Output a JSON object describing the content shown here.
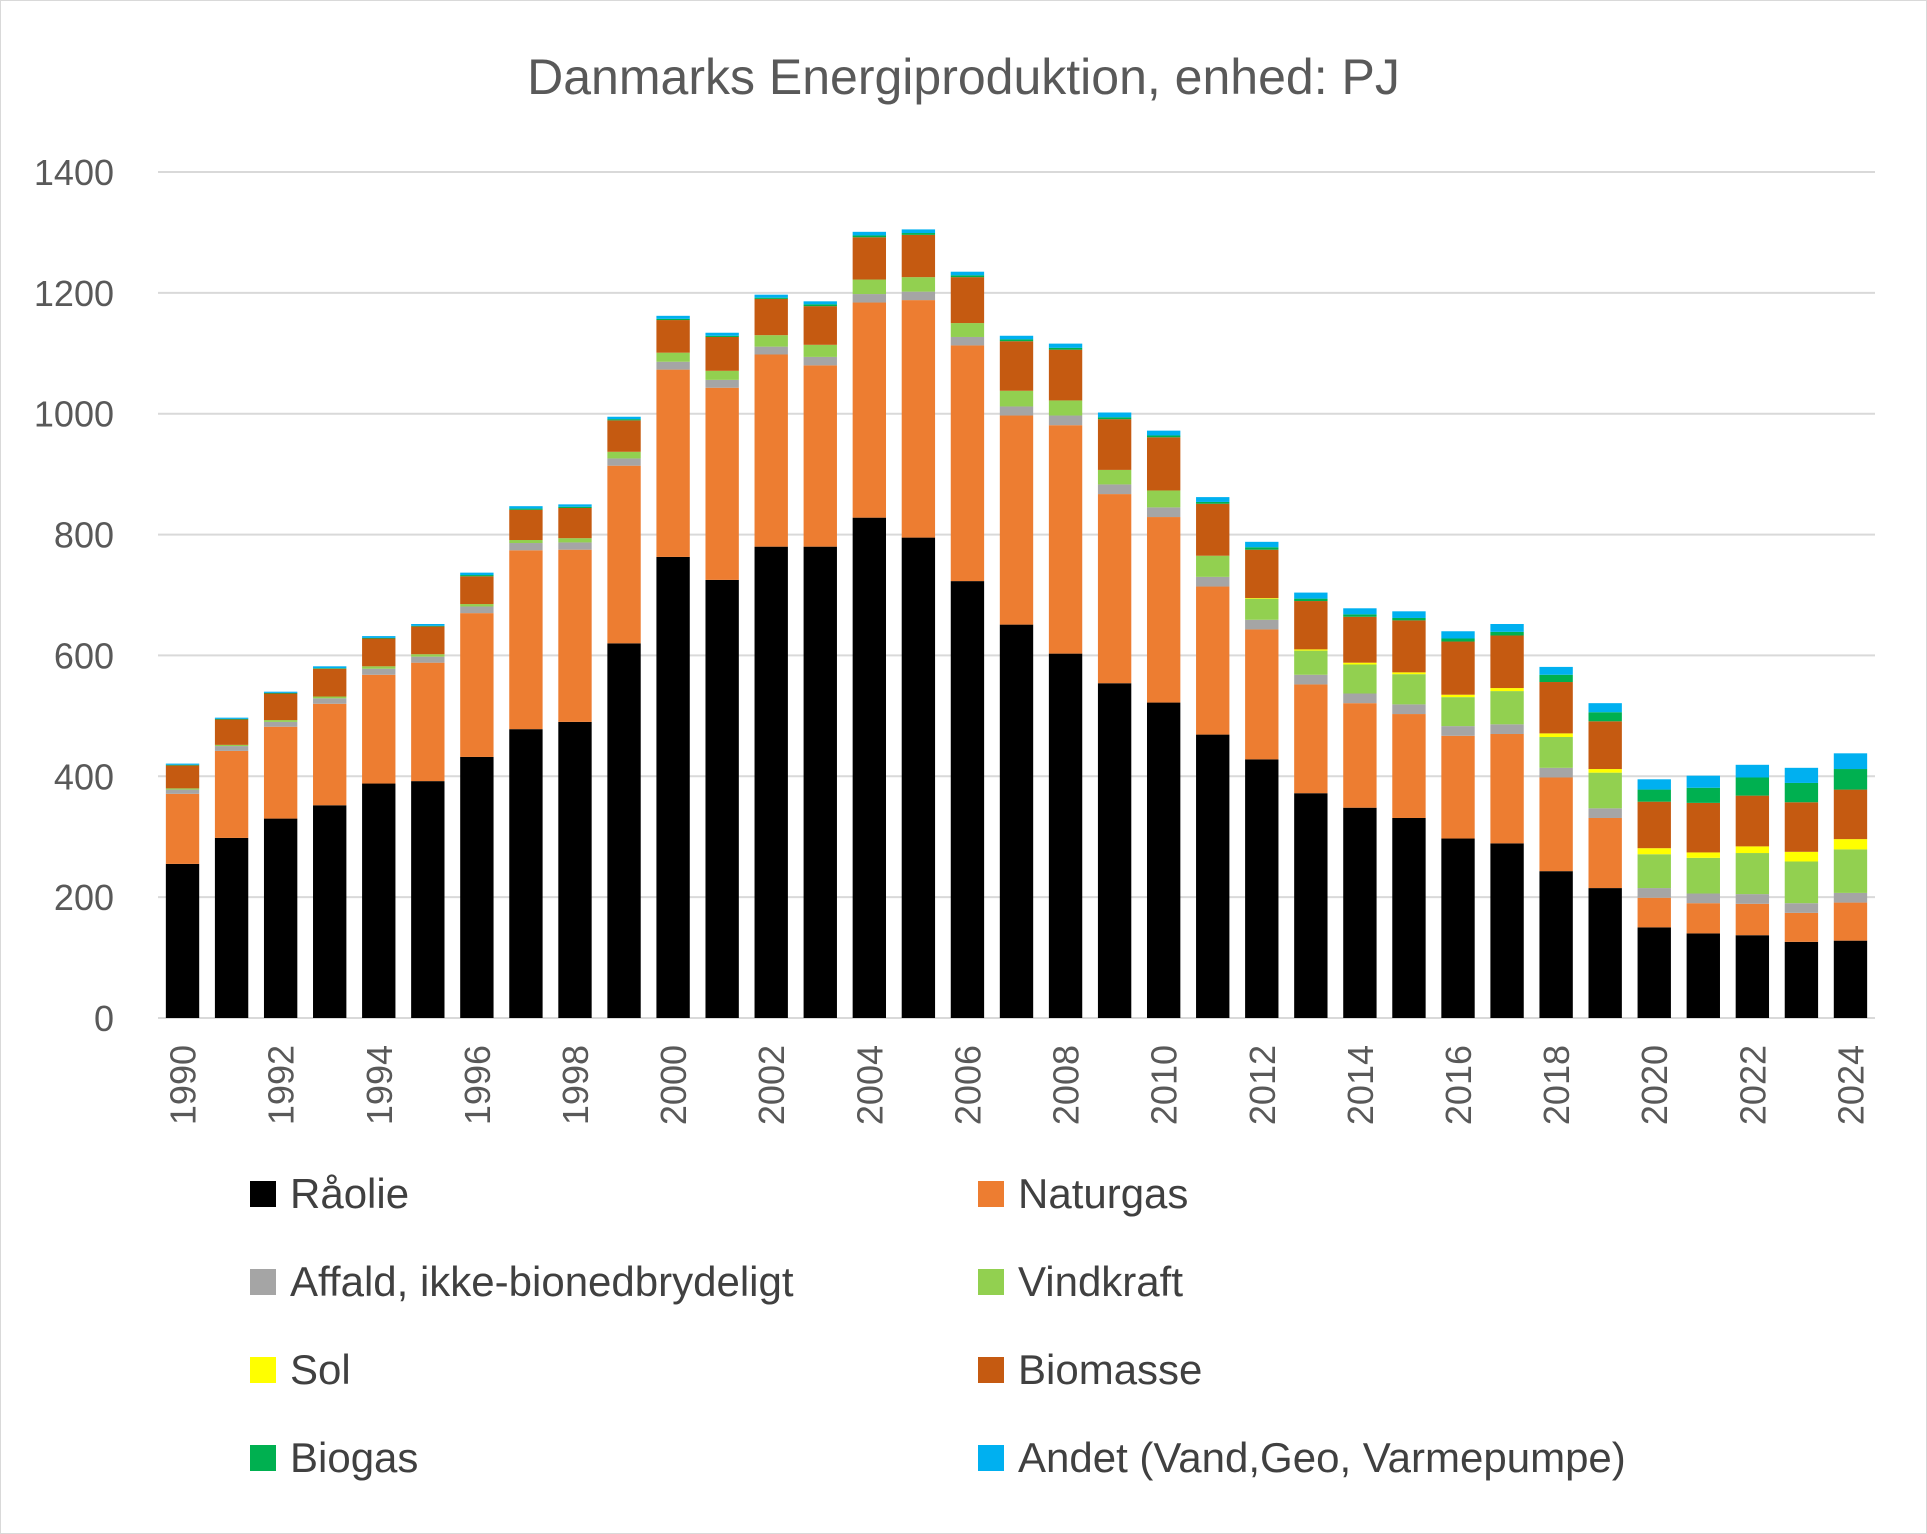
{
  "chart_data": {
    "type": "bar",
    "stacked": true,
    "title": "Danmarks Energiproduktion, enhed: PJ",
    "xlabel": "",
    "ylabel": "",
    "ylim": [
      0,
      1400
    ],
    "yticks": [
      0,
      200,
      400,
      600,
      800,
      1000,
      1200,
      1400
    ],
    "grid": true,
    "legend_position": "bottom",
    "categories": [
      "1990",
      "1991",
      "1992",
      "1993",
      "1994",
      "1995",
      "1996",
      "1997",
      "1998",
      "1999",
      "2000",
      "2001",
      "2002",
      "2003",
      "2004",
      "2005",
      "2006",
      "2007",
      "2008",
      "2009",
      "2010",
      "2011",
      "2012",
      "2013",
      "2014",
      "2015",
      "2016",
      "2017",
      "2018",
      "2019",
      "2020",
      "2021",
      "2022",
      "2023",
      "2024"
    ],
    "xtick_labels": [
      "1990",
      "",
      "1992",
      "",
      "1994",
      "",
      "1996",
      "",
      "1998",
      "",
      "2000",
      "",
      "2002",
      "",
      "2004",
      "",
      "2006",
      "",
      "2008",
      "",
      "2010",
      "",
      "2012",
      "",
      "2014",
      "",
      "2016",
      "",
      "2018",
      "",
      "2020",
      "",
      "2022",
      "",
      "2024"
    ],
    "series": [
      {
        "name": "Råolie",
        "color": "#000000",
        "values": [
          255,
          298,
          330,
          352,
          388,
          392,
          432,
          478,
          490,
          620,
          763,
          725,
          780,
          780,
          828,
          795,
          723,
          651,
          603,
          554,
          522,
          469,
          428,
          372,
          348,
          331,
          297,
          289,
          243,
          215,
          150,
          140,
          137,
          126,
          128
        ]
      },
      {
        "name": "Naturgas",
        "color": "#ED7D31",
        "values": [
          116,
          144,
          152,
          168,
          180,
          196,
          238,
          296,
          285,
          294,
          310,
          318,
          318,
          300,
          356,
          393,
          390,
          346,
          378,
          313,
          307,
          245,
          215,
          180,
          173,
          172,
          170,
          181,
          155,
          116,
          49,
          50,
          52,
          48,
          63
        ]
      },
      {
        "name": "Affald, ikke-bionedbrydeligt",
        "color": "#A5A5A5",
        "values": [
          7,
          8,
          8,
          9,
          10,
          10,
          11,
          12,
          12,
          12,
          13,
          13,
          13,
          14,
          14,
          14,
          14,
          15,
          16,
          16,
          16,
          16,
          16,
          16,
          16,
          16,
          16,
          16,
          16,
          16,
          16,
          16,
          16,
          16,
          16
        ]
      },
      {
        "name": "Vindkraft",
        "color": "#92D050",
        "values": [
          2,
          2,
          3,
          3,
          4,
          4,
          4,
          5,
          7,
          11,
          15,
          15,
          19,
          20,
          24,
          24,
          23,
          26,
          25,
          24,
          28,
          35,
          35,
          40,
          48,
          50,
          48,
          55,
          51,
          59,
          56,
          59,
          68,
          69,
          72
        ]
      },
      {
        "name": "Sol",
        "color": "#FFFF00",
        "values": [
          0,
          0,
          0,
          0,
          0,
          0,
          0,
          0,
          0,
          0,
          0,
          0,
          0,
          0,
          0,
          0,
          0,
          0,
          0,
          0,
          0,
          0,
          1,
          2,
          3,
          3,
          4,
          5,
          6,
          6,
          10,
          9,
          11,
          16,
          17
        ]
      },
      {
        "name": "Biomasse",
        "color": "#C55A11",
        "values": [
          38,
          42,
          44,
          46,
          46,
          46,
          46,
          50,
          50,
          52,
          54,
          56,
          60,
          64,
          70,
          70,
          76,
          82,
          84,
          84,
          88,
          86,
          80,
          80,
          76,
          86,
          88,
          87,
          85,
          79,
          77,
          82,
          84,
          82,
          82
        ]
      },
      {
        "name": "Biogas",
        "color": "#00B050",
        "values": [
          1,
          1,
          1,
          1,
          1,
          1,
          2,
          2,
          2,
          2,
          2,
          2,
          2,
          3,
          3,
          3,
          3,
          3,
          3,
          3,
          3,
          3,
          4,
          4,
          4,
          4,
          5,
          6,
          12,
          15,
          20,
          25,
          30,
          32,
          34
        ]
      },
      {
        "name": "Andet (Vand,Geo, Varmepumpe)",
        "color": "#00B0F0",
        "values": [
          2,
          2,
          2,
          3,
          3,
          3,
          4,
          4,
          4,
          4,
          5,
          5,
          5,
          5,
          6,
          6,
          6,
          6,
          7,
          8,
          8,
          8,
          9,
          10,
          10,
          11,
          12,
          13,
          13,
          15,
          17,
          20,
          21,
          25,
          26
        ]
      }
    ]
  }
}
